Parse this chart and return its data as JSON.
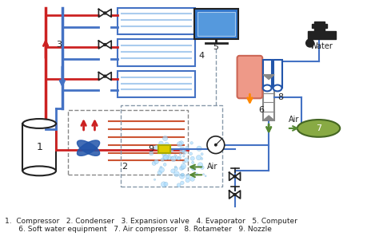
{
  "bg_color": "#ffffff",
  "red_color": "#cc2222",
  "blue_color": "#4472c4",
  "dark_blue": "#2255aa",
  "light_blue": "#aaccee",
  "gray_color": "#888888",
  "orange_color": "#ff8800",
  "green_color": "#558833",
  "yellow_color": "#ddcc00",
  "pink_color": "#ee9988",
  "brown_color": "#cc5533",
  "dark_color": "#222222",
  "legend_line1": "1.  Compressor   2. Condenser   3. Expansion valve   4. Evaporator   5. Computer",
  "legend_line2": "      6. Soft water equipment   7. Air compressor   8. Rotameter   9. Nozzle"
}
